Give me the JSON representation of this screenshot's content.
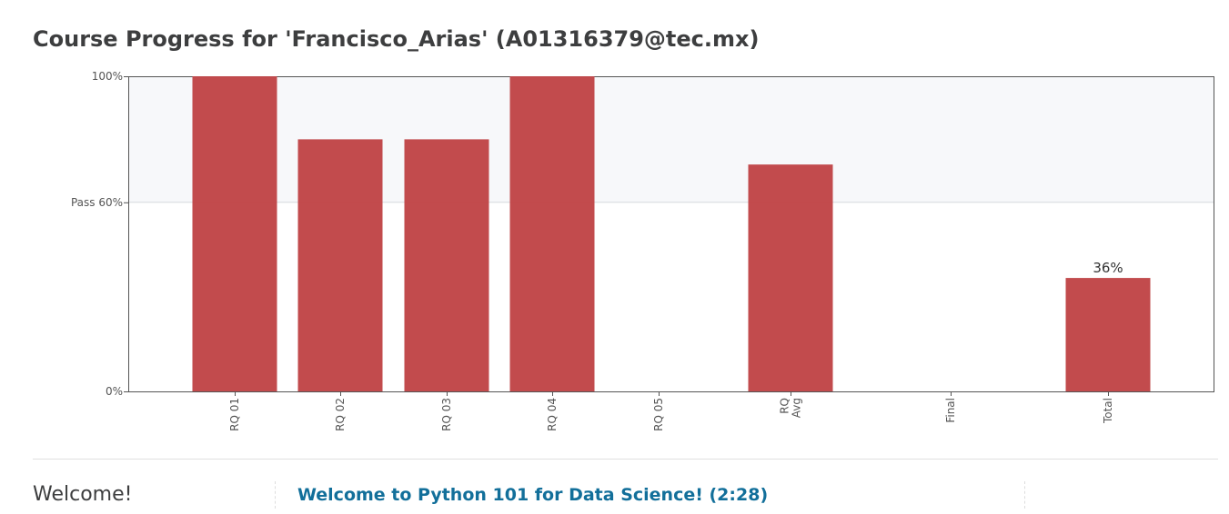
{
  "page": {
    "title": "Course Progress for 'Francisco_Arias' (A01316379@tec.mx)"
  },
  "chart_data": {
    "type": "bar",
    "title": "",
    "xlabel": "",
    "ylabel": "",
    "ylim": [
      0,
      100
    ],
    "categories": [
      "RQ 01",
      "RQ 02",
      "RQ 03",
      "RQ 04",
      "RQ 05",
      "RQ Avg",
      "Final",
      "Total"
    ],
    "category_lines": [
      [
        "RQ 01"
      ],
      [
        "RQ 02"
      ],
      [
        "RQ 03"
      ],
      [
        "RQ 04"
      ],
      [
        "RQ 05"
      ],
      [
        "RQ",
        "Avg"
      ],
      [
        "Final"
      ],
      [
        "Total"
      ]
    ],
    "values": [
      100,
      80,
      80,
      100,
      0,
      72,
      0,
      36
    ],
    "y_ticks": [
      {
        "value": 100,
        "label": "100%"
      },
      {
        "value": 60,
        "label": "Pass 60%"
      },
      {
        "value": 0,
        "label": "0%"
      }
    ],
    "data_labels": [
      {
        "category": "Total",
        "label": "36%"
      }
    ],
    "pass_threshold": 60,
    "grid": false,
    "colors": {
      "bar": "#c04547",
      "pass_band": "#f7f8fa",
      "axis": "#555555"
    }
  },
  "section": {
    "label": "Welcome!",
    "lesson_link": "Welcome to Python 101 for Data Science! (2:28)"
  }
}
